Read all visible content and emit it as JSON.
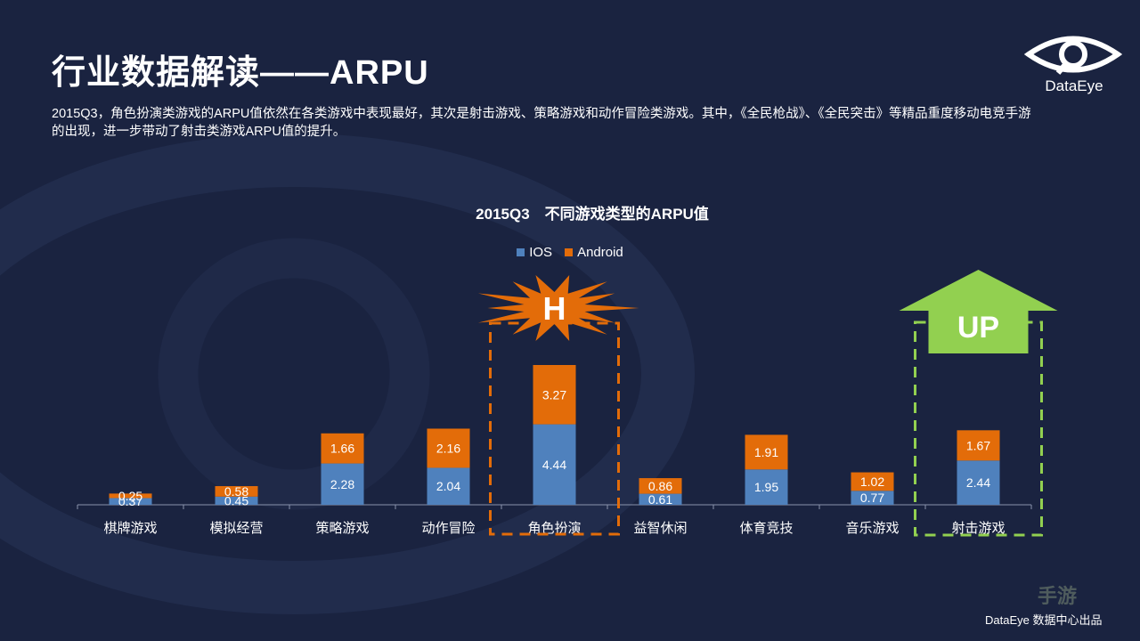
{
  "title": "行业数据解读——ARPU",
  "description": "2015Q3，角色扮演类游戏的ARPU值依然在各类游戏中表现最好，其次是射击游戏、策略游戏和动作冒险类游戏。其中，《全民枪战》、《全民突击》等精品重度移动电竞手游的出现，进一步带动了射击类游戏ARPU值的提升。",
  "logo": {
    "text": "DataEye",
    "icon": "eye-logo-icon"
  },
  "footer": "DataEye 数据中心出品",
  "watermark": "手游",
  "colors": {
    "background": "#1a2340",
    "ios": "#4f81bd",
    "android": "#e36c09",
    "highlight": "#e36c09",
    "up": "#92d050"
  },
  "chart_data": {
    "type": "bar",
    "stacked": true,
    "title": "2015Q3　不同游戏类型的ARPU值",
    "legend_position": "top",
    "grid": false,
    "categories": [
      "棋牌游戏",
      "模拟经营",
      "策略游戏",
      "动作冒险",
      "角色扮演",
      "益智休闲",
      "体育竞技",
      "音乐游戏",
      "射击游戏"
    ],
    "series": [
      {
        "name": "IOS",
        "color": "#4f81bd",
        "values": [
          0.37,
          0.45,
          2.28,
          2.04,
          4.44,
          0.61,
          1.95,
          0.77,
          2.44
        ]
      },
      {
        "name": "Android",
        "color": "#e36c09",
        "values": [
          0.25,
          0.58,
          1.66,
          2.16,
          3.27,
          0.86,
          1.91,
          1.02,
          1.67
        ]
      }
    ],
    "ylim": [
      0,
      8.5
    ],
    "annotations": [
      {
        "type": "starburst",
        "label": "H",
        "category": "角色扮演",
        "color": "#e36c09"
      },
      {
        "type": "arrow-up",
        "label": "UP",
        "category": "射击游戏",
        "color": "#92d050"
      }
    ]
  }
}
